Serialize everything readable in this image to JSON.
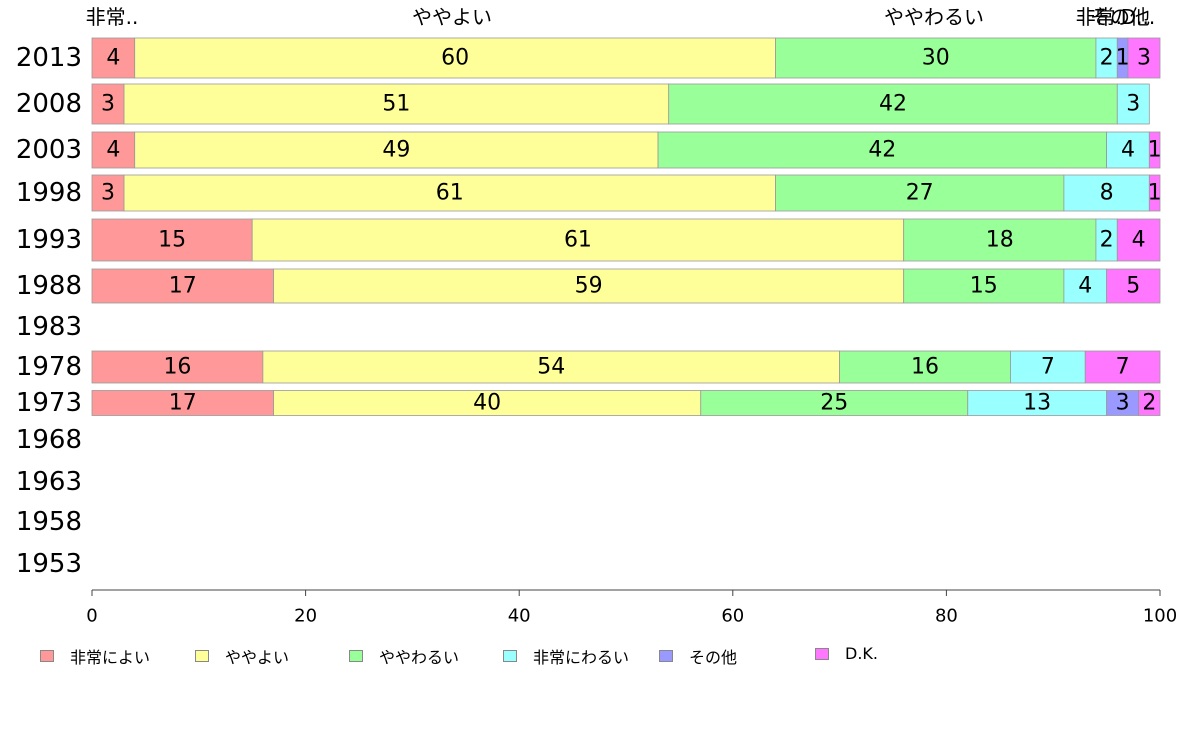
{
  "chart_data": {
    "type": "bar",
    "orientation": "horizontal",
    "stacked": true,
    "categories": [
      "2013",
      "2008",
      "2003",
      "1998",
      "1993",
      "1988",
      "1983",
      "1978",
      "1973",
      "1968",
      "1963",
      "1958",
      "1953"
    ],
    "series": [
      {
        "name": "非常によい",
        "color": "#ff9999",
        "values": [
          4,
          3,
          4,
          3,
          15,
          17,
          null,
          16,
          17,
          null,
          null,
          null,
          null
        ]
      },
      {
        "name": "ややよい",
        "color": "#ffff99",
        "values": [
          60,
          51,
          49,
          61,
          61,
          59,
          null,
          54,
          40,
          null,
          null,
          null,
          null
        ]
      },
      {
        "name": "ややわるい",
        "color": "#99ff99",
        "values": [
          30,
          42,
          42,
          27,
          18,
          15,
          null,
          16,
          25,
          null,
          null,
          null,
          null
        ]
      },
      {
        "name": "非常にわるい",
        "color": "#99ffff",
        "values": [
          2,
          3,
          4,
          8,
          2,
          4,
          null,
          7,
          13,
          null,
          null,
          null,
          null
        ]
      },
      {
        "name": "その他",
        "color": "#9999ff",
        "values": [
          1,
          0,
          0,
          0,
          0,
          0,
          null,
          0,
          3,
          null,
          null,
          null,
          null
        ]
      },
      {
        "name": "D.K.",
        "color": "#ff77ff",
        "values": [
          3,
          0,
          1,
          1,
          4,
          5,
          null,
          7,
          2,
          null,
          null,
          null,
          null
        ]
      }
    ],
    "top_labels": [
      "非常..",
      "ややよい",
      "ややわるい",
      "非常..",
      "その他",
      "D..."
    ],
    "x_ticks": [
      "0",
      "20",
      "40",
      "60",
      "80",
      "100"
    ],
    "xlim": [
      0,
      100
    ],
    "grid": false,
    "legend_position": "bottom"
  }
}
